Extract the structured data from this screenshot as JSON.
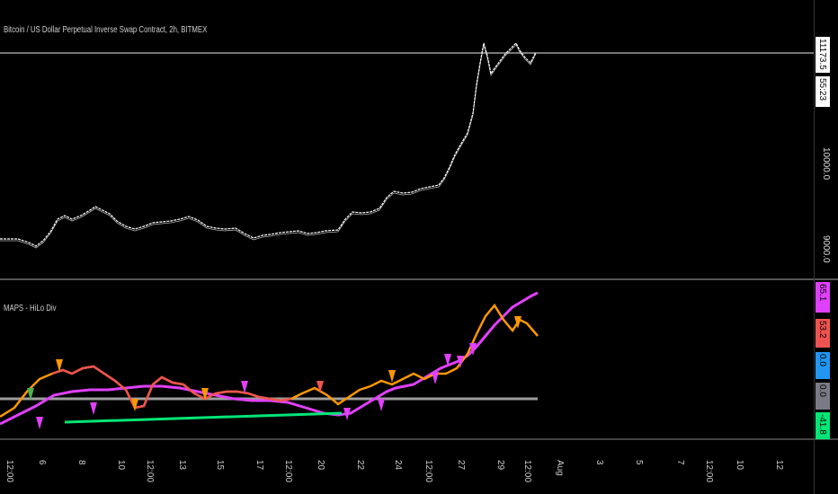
{
  "main": {
    "title": "Bitcoin / US Dollar Perpetual Inverse Swap Contract, 2h, BITMEX",
    "price_badge": "11173.5",
    "countdown_badge": "55:23",
    "y_labels": [
      "10000.0",
      "9000.0"
    ]
  },
  "indicator": {
    "title": "MAPS - HiLo Div",
    "badges": [
      {
        "text": "65.1",
        "color": "#e040fb"
      },
      {
        "text": "53.2",
        "color": "#ef5350"
      },
      {
        "text": "0.0",
        "color": "#2196f3"
      },
      {
        "text": "0.0",
        "color": "#787b86"
      },
      {
        "text": "-41.8",
        "color": "#00e676"
      }
    ]
  },
  "x_axis": {
    "labels": [
      "12:00",
      "6",
      "8",
      "10",
      "12:00",
      "13",
      "15",
      "17",
      "12:00",
      "20",
      "22",
      "24",
      "12:00",
      "27",
      "29",
      "12:00",
      "Aug",
      "3",
      "5",
      "7",
      "12:00",
      "10",
      "12"
    ]
  },
  "colors": {
    "price": "#ffffff",
    "hline": "#9e9e9e",
    "ma_fast": "#ef5350",
    "ma_fast_up": "#ff9800",
    "ma_slow": "#e040fb",
    "divergence": "#00e676"
  }
}
